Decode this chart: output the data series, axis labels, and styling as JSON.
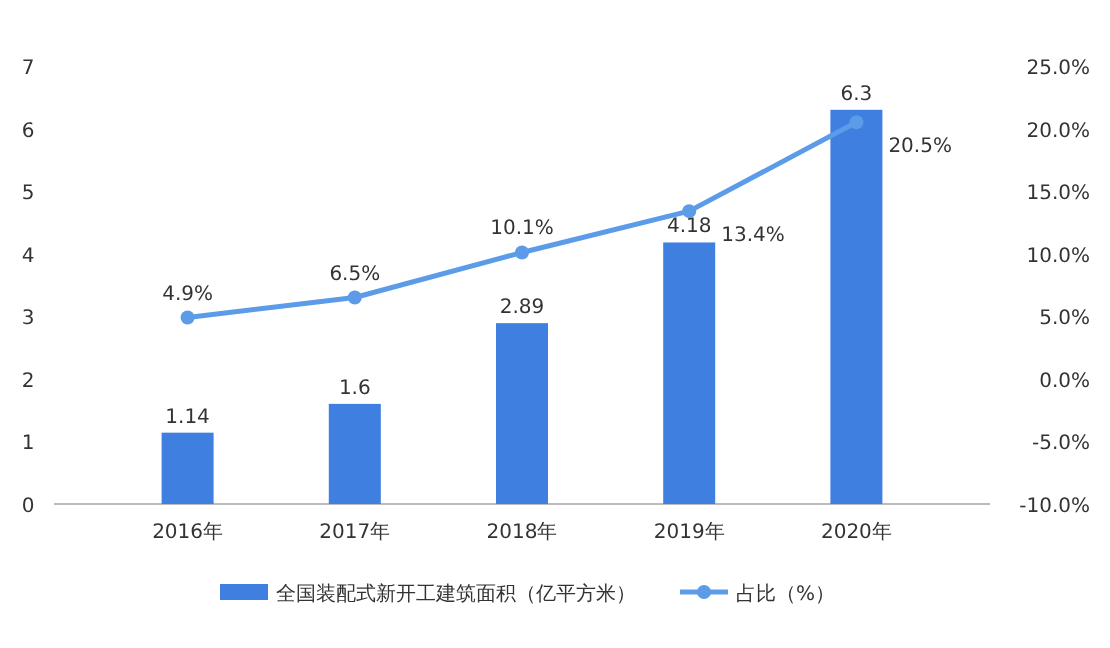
{
  "chart_data": {
    "type": "bar",
    "categories": [
      "2016年",
      "2017年",
      "2018年",
      "2019年",
      "2020年"
    ],
    "series": [
      {
        "name": "全国装配式新开工建筑面积（亿平方米）",
        "color": "#3f7fe0",
        "values": [
          1.14,
          1.6,
          2.89,
          4.18,
          6.3
        ]
      },
      {
        "name": "占比（%）",
        "type": "line",
        "axis": "y2",
        "color": "#5b9be8",
        "values": [
          4.9,
          6.5,
          10.1,
          13.4,
          20.5
        ],
        "value_labels": [
          "4.9%",
          "6.5%",
          "10.1%",
          "13.4%",
          "20.5%"
        ]
      }
    ],
    "ylim": [
      0,
      7
    ],
    "yticks": [
      0,
      1,
      2,
      3,
      4,
      5,
      6,
      7
    ],
    "y2lim": [
      -10,
      25
    ],
    "y2ticks": [
      {
        "value": -10,
        "label": "-10.0%"
      },
      {
        "value": -5,
        "label": "-5.0%"
      },
      {
        "value": 0,
        "label": "0.0%"
      },
      {
        "value": 5,
        "label": "5.0%"
      },
      {
        "value": 10,
        "label": "10.0%"
      },
      {
        "value": 15,
        "label": "15.0%"
      },
      {
        "value": 20,
        "label": "20.0%"
      },
      {
        "value": 25,
        "label": "25.0%"
      }
    ],
    "data_labels": true,
    "legend": "bottom",
    "marker": "circle",
    "grid": false
  }
}
